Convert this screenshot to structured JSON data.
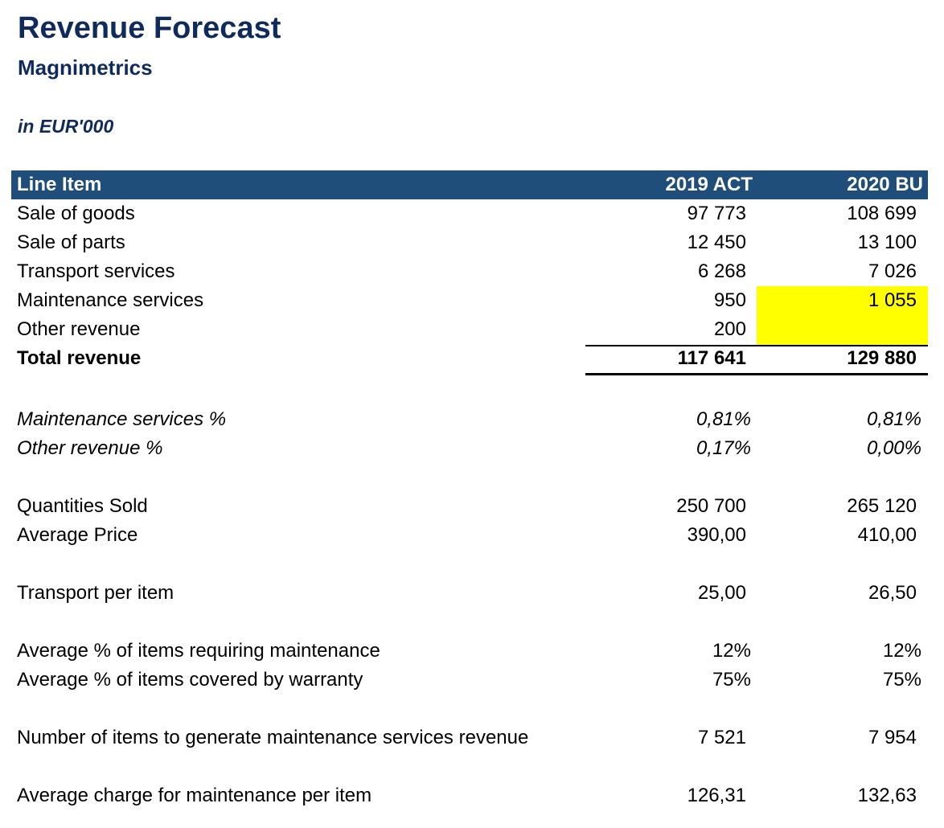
{
  "header": {
    "title": "Revenue Forecast",
    "subtitle": "Magnimetrics",
    "units": "in EUR'000"
  },
  "colors": {
    "title": "#0f2a5c",
    "header_bar": "#1f4e7a",
    "highlight": "#ffff00"
  },
  "table": {
    "columns": [
      "Line Item",
      "2019 ACT",
      "2020 BU"
    ],
    "rows": [
      {
        "label": "Sale of goods",
        "v2019": "97 773",
        "v2020": "108 699"
      },
      {
        "label": "Sale of parts",
        "v2019": "12 450",
        "v2020": "13 100"
      },
      {
        "label": "Transport services",
        "v2019": "6 268",
        "v2020": "7 026"
      },
      {
        "label": "Maintenance services",
        "v2019": "950",
        "v2020": "1 055"
      },
      {
        "label": "Other revenue",
        "v2019": "200",
        "v2020": ""
      }
    ],
    "total": {
      "label": "Total revenue",
      "v2019": "117 641",
      "v2020": "129 880"
    }
  },
  "percentages": [
    {
      "label": "Maintenance services %",
      "v2019": "0,81%",
      "v2020": "0,81%"
    },
    {
      "label": "Other revenue %",
      "v2019": "0,17%",
      "v2020": "0,00%"
    }
  ],
  "drivers": {
    "quantities_sold": {
      "label": "Quantities Sold",
      "v2019": "250 700",
      "v2020": "265 120"
    },
    "average_price": {
      "label": "Average Price",
      "v2019": "390,00",
      "v2020": "410,00"
    },
    "transport_per_item": {
      "label": "Transport per item",
      "v2019": "25,00",
      "v2020": "26,50"
    },
    "pct_requiring_maintenance": {
      "label": "Average % of items requiring maintenance",
      "v2019": "12%",
      "v2020": "12%"
    },
    "pct_covered_warranty": {
      "label": "Average % of items covered by warranty",
      "v2019": "75%",
      "v2020": "75%"
    },
    "items_maintenance_revenue": {
      "label": "Number of items to generate maintenance services revenue",
      "v2019": "7 521",
      "v2020": "7 954"
    },
    "avg_charge_maintenance": {
      "label": "Average charge for maintenance per item",
      "v2019": "126,31",
      "v2020": "132,63"
    }
  }
}
